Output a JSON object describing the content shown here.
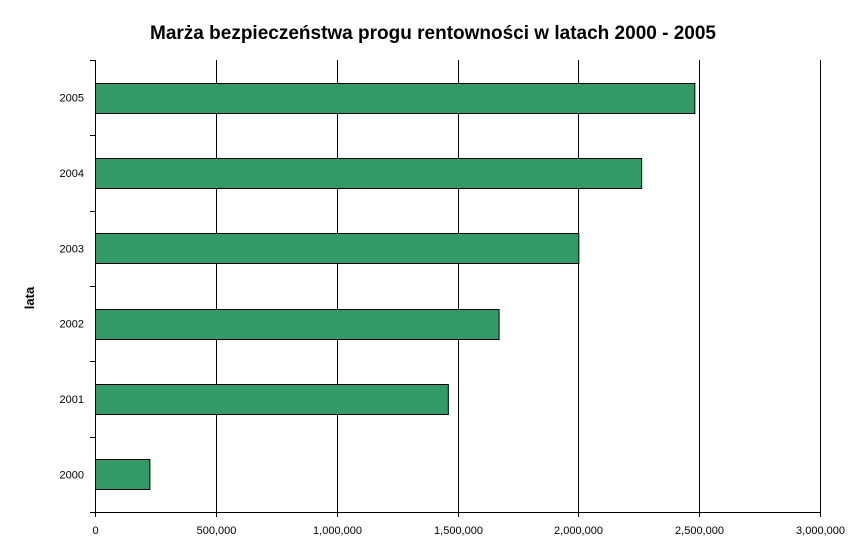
{
  "chart_data": {
    "type": "bar",
    "orientation": "horizontal",
    "title": "Marża bezpieczeństwa progu rentowności w latach 2000 - 2005",
    "xlabel": "",
    "ylabel": "lata",
    "categories": [
      "2000",
      "2001",
      "2002",
      "2003",
      "2004",
      "2005"
    ],
    "values": [
      225000,
      1460000,
      1670000,
      2000000,
      2260000,
      2480000
    ],
    "xlim": [
      0,
      3000000
    ],
    "x_ticks": [
      0,
      500000,
      1000000,
      1500000,
      2000000,
      2500000,
      3000000
    ],
    "x_tick_labels": [
      "0",
      "500,000",
      "1,000,000",
      "1,500,000",
      "2,000,000",
      "2,500,000",
      "3,000,000"
    ],
    "grid": "vertical",
    "legend": "none",
    "bar_color": "#339966",
    "bar_edge_color": "#000000"
  }
}
